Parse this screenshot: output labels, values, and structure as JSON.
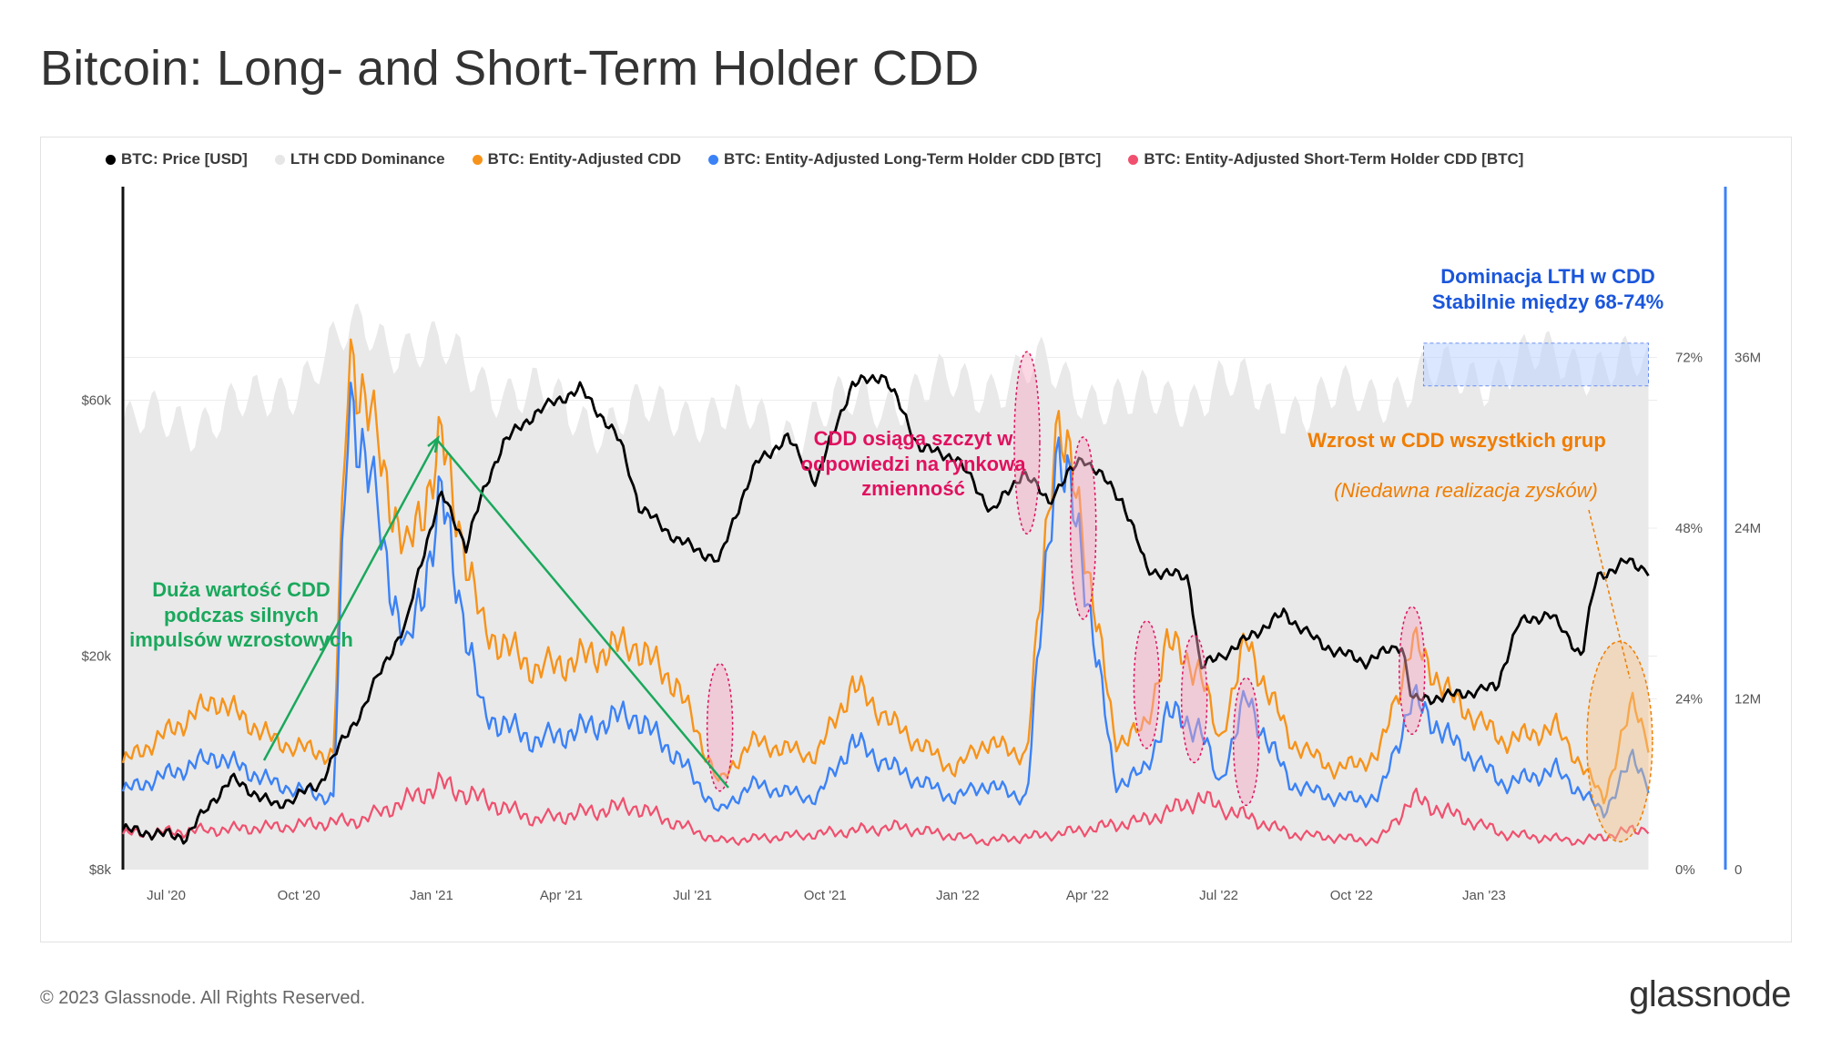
{
  "title": "Bitcoin: Long- and Short-Term Holder CDD",
  "footer": {
    "copyright": "© 2023 Glassnode. All Rights Reserved.",
    "logo": "glassnode"
  },
  "watermark": "glassnode",
  "legend": [
    {
      "label": "BTC: Price [USD]",
      "color": "#000000"
    },
    {
      "label": "LTH CDD Dominance",
      "color": "#e6e6e6"
    },
    {
      "label": "BTC: Entity-Adjusted CDD",
      "color": "#f7931a"
    },
    {
      "label": "BTC: Entity-Adjusted Long-Term Holder CDD [BTC]",
      "color": "#3b82f6"
    },
    {
      "label": "BTC: Entity-Adjusted Short-Term Holder CDD [BTC]",
      "color": "#f0506e"
    }
  ],
  "annotations": {
    "green": "Duża wartość CDD podczas silnych impulsów wzrostowych",
    "pink": "CDD osiąga szczyt w odpowiedzi na rynkową zmienność",
    "blue": "Dominacja LTH w CDD Stabilnie między  68-74%",
    "orange": "Wzrost w CDD wszystkich grup",
    "orange_sub": "(Niedawna realizacja zysków)"
  },
  "chart_data": {
    "type": "line",
    "title": "Bitcoin: Long- and Short-Term Holder CDD",
    "x_ticks": [
      "Jul '20",
      "Oct '20",
      "Jan '21",
      "Apr '21",
      "Jul '21",
      "Oct '21",
      "Jan '22",
      "Apr '22",
      "Jul '22",
      "Oct '22",
      "Jan '23"
    ],
    "x_range": [
      "2020-06-01",
      "2023-05-01"
    ],
    "y_left": {
      "label": "Price [USD]",
      "scale": "log",
      "ticks": [
        "$8k",
        "$20k",
        "$60k"
      ],
      "range": [
        8000,
        150000
      ]
    },
    "y_right_pct": {
      "ticks": [
        "0%",
        "24%",
        "48%",
        "72%"
      ],
      "range": [
        0,
        96
      ]
    },
    "y_right_cdd": {
      "ticks": [
        "0",
        "12M",
        "24M",
        "36M"
      ],
      "range": [
        0,
        48
      ]
    },
    "series": [
      {
        "name": "BTC: Price [USD]",
        "axis": "left",
        "color": "#000000",
        "dates": [
          "2020-06-01",
          "2020-07-15",
          "2020-08-15",
          "2020-09-15",
          "2020-10-15",
          "2020-11-15",
          "2020-12-15",
          "2021-01-08",
          "2021-01-25",
          "2021-02-20",
          "2021-03-15",
          "2021-04-14",
          "2021-05-12",
          "2021-05-25",
          "2021-06-20",
          "2021-07-20",
          "2021-08-15",
          "2021-09-05",
          "2021-09-25",
          "2021-10-20",
          "2021-11-10",
          "2021-12-05",
          "2021-12-30",
          "2022-01-25",
          "2022-02-15",
          "2022-03-05",
          "2022-03-29",
          "2022-04-25",
          "2022-05-12",
          "2022-06-10",
          "2022-06-18",
          "2022-07-15",
          "2022-08-15",
          "2022-09-10",
          "2022-10-10",
          "2022-11-05",
          "2022-11-12",
          "2022-12-15",
          "2023-01-10",
          "2023-01-25",
          "2023-02-15",
          "2023-03-10",
          "2023-03-20",
          "2023-04-10",
          "2023-04-25"
        ],
        "values": [
          9500,
          9200,
          11800,
          10500,
          11500,
          16000,
          23000,
          40000,
          32000,
          50000,
          57000,
          63000,
          50000,
          38000,
          33000,
          30000,
          46000,
          51000,
          42000,
          64000,
          67000,
          49000,
          47000,
          37000,
          44000,
          39000,
          47000,
          39000,
          29000,
          28000,
          19000,
          21000,
          24000,
          21000,
          19500,
          21000,
          16500,
          17000,
          17500,
          23000,
          24000,
          20000,
          28000,
          30000,
          29000
        ]
      },
      {
        "name": "LTH CDD Dominance",
        "axis": "right_pct",
        "unit": "%",
        "color": "#e6e6e6",
        "dates": [
          "2020-06-01",
          "2020-09-01",
          "2020-11-15",
          "2021-01-01",
          "2021-03-01",
          "2021-05-01",
          "2021-07-01",
          "2021-09-01",
          "2021-11-01",
          "2022-01-01",
          "2022-03-01",
          "2022-05-01",
          "2022-07-01",
          "2022-09-01",
          "2022-11-01",
          "2023-01-01",
          "2023-03-01",
          "2023-04-25"
        ],
        "values": [
          62,
          65,
          76,
          73,
          67,
          63,
          65,
          62,
          66,
          68,
          70,
          65,
          68,
          65,
          68,
          70,
          72,
          70
        ]
      },
      {
        "name": "BTC: Entity-Adjusted CDD",
        "axis": "right_cdd",
        "unit": "M",
        "color": "#f7931a",
        "dates": [
          "2020-06-01",
          "2020-08-05",
          "2020-09-15",
          "2020-10-25",
          "2020-11-05",
          "2020-12-15",
          "2021-01-08",
          "2021-02-05",
          "2021-03-15",
          "2021-04-20",
          "2021-05-20",
          "2021-06-20",
          "2021-07-20",
          "2021-08-10",
          "2021-09-25",
          "2021-10-20",
          "2021-11-20",
          "2021-12-30",
          "2022-01-20",
          "2022-02-18",
          "2022-03-10",
          "2022-03-27",
          "2022-04-20",
          "2022-05-12",
          "2022-05-25",
          "2022-06-18",
          "2022-07-01",
          "2022-07-20",
          "2022-08-20",
          "2022-09-20",
          "2022-10-20",
          "2022-11-12",
          "2022-12-10",
          "2023-01-15",
          "2023-02-20",
          "2023-03-25",
          "2023-04-15",
          "2023-04-25"
        ],
        "values": [
          7.5,
          12,
          9,
          8,
          37,
          22,
          30,
          17,
          14,
          15,
          16,
          13,
          6,
          9,
          8,
          13,
          10,
          7,
          9,
          8,
          32,
          25,
          9,
          10,
          16,
          14,
          9,
          16,
          9,
          7,
          8,
          16,
          12,
          9,
          10,
          5,
          12,
          9
        ]
      },
      {
        "name": "BTC: Entity-Adjusted Long-Term Holder CDD [BTC]",
        "axis": "right_cdd",
        "unit": "M",
        "color": "#3b82f6",
        "dates": [
          "2020-06-01",
          "2020-08-05",
          "2020-09-15",
          "2020-10-25",
          "2020-11-05",
          "2020-12-15",
          "2021-01-08",
          "2021-02-05",
          "2021-03-15",
          "2021-04-20",
          "2021-05-20",
          "2021-06-20",
          "2021-07-20",
          "2021-08-10",
          "2021-09-25",
          "2021-10-20",
          "2021-11-20",
          "2021-12-30",
          "2022-01-20",
          "2022-02-18",
          "2022-03-10",
          "2022-03-27",
          "2022-04-20",
          "2022-05-12",
          "2022-05-25",
          "2022-06-18",
          "2022-07-01",
          "2022-07-20",
          "2022-08-20",
          "2022-09-20",
          "2022-10-20",
          "2022-11-12",
          "2022-12-10",
          "2023-01-15",
          "2023-02-20",
          "2023-03-25",
          "2023-04-15",
          "2023-04-25"
        ],
        "values": [
          5.5,
          8,
          6,
          5,
          34,
          15,
          26,
          11,
          9,
          10,
          11,
          8,
          4,
          6,
          5,
          9,
          7,
          5,
          6,
          5,
          30,
          23,
          6,
          7,
          11,
          10,
          6,
          12,
          6,
          5,
          5,
          12,
          9,
          6,
          7,
          4,
          8,
          6
        ]
      },
      {
        "name": "BTC: Entity-Adjusted Short-Term Holder CDD [BTC]",
        "axis": "right_cdd",
        "unit": "M",
        "color": "#f0506e",
        "dates": [
          "2020-06-01",
          "2020-09-15",
          "2020-11-15",
          "2021-01-08",
          "2021-03-15",
          "2021-05-20",
          "2021-07-20",
          "2021-09-25",
          "2021-11-20",
          "2022-01-20",
          "2022-03-10",
          "2022-05-12",
          "2022-06-18",
          "2022-08-20",
          "2022-10-20",
          "2022-11-12",
          "2023-01-15",
          "2023-03-10",
          "2023-04-25"
        ],
        "values": [
          2.5,
          3,
          3.5,
          6,
          3.5,
          4.5,
          2,
          2.5,
          3,
          2,
          2.5,
          3.5,
          5,
          2.5,
          2,
          5,
          2.5,
          2,
          3
        ]
      }
    ]
  }
}
